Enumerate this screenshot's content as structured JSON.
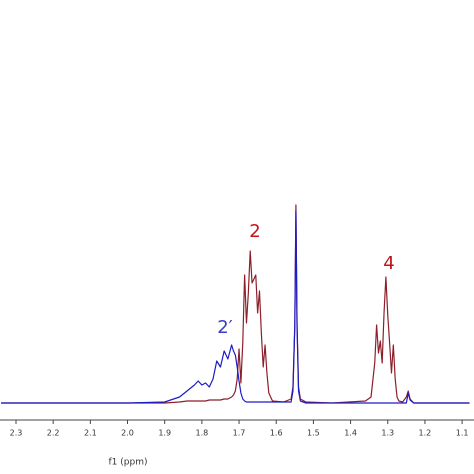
{
  "chart_data": {
    "type": "line",
    "xlabel": "f1 (ppm)",
    "x": [
      2.34,
      2.0,
      1.9,
      1.86,
      1.84,
      1.82,
      1.81,
      1.8,
      1.79,
      1.78,
      1.77,
      1.76,
      1.75,
      1.74,
      1.73,
      1.72,
      1.715,
      1.71,
      1.705,
      1.7,
      1.695,
      1.69,
      1.685,
      1.68,
      1.675,
      1.67,
      1.665,
      1.66,
      1.655,
      1.65,
      1.645,
      1.64,
      1.635,
      1.63,
      1.625,
      1.62,
      1.61,
      1.58,
      1.56,
      1.555,
      1.55,
      1.547,
      1.544,
      1.54,
      1.535,
      1.52,
      1.45,
      1.36,
      1.345,
      1.335,
      1.33,
      1.325,
      1.32,
      1.315,
      1.31,
      1.305,
      1.3,
      1.295,
      1.29,
      1.285,
      1.28,
      1.275,
      1.27,
      1.26,
      1.25,
      1.245,
      1.24,
      1.23,
      1.08
    ],
    "series": [
      {
        "color": "#8b1f2a",
        "values": [
          0,
          0,
          0,
          0.5,
          1,
          1,
          1,
          1,
          1,
          1.5,
          1.5,
          1.5,
          1.5,
          2,
          2,
          3,
          4,
          6,
          12,
          27,
          10,
          30,
          64,
          40,
          55,
          76,
          60,
          62,
          64,
          45,
          56,
          35,
          18,
          29,
          15,
          5,
          1,
          0.5,
          2,
          8,
          40,
          99,
          40,
          8,
          2,
          0.5,
          0,
          1,
          3,
          20,
          39,
          25,
          31,
          20,
          45,
          63,
          44,
          30,
          15,
          29,
          12,
          3,
          1,
          0.5,
          3,
          6,
          2,
          0,
          0
        ]
      },
      {
        "color": "#1c1cc8",
        "values": [
          0,
          0,
          0.5,
          3,
          6,
          9,
          11,
          9,
          10,
          8,
          12,
          21,
          18,
          26,
          22,
          29,
          26,
          24,
          18,
          11,
          5,
          2,
          1,
          0.5,
          0.5,
          0.5,
          0.5,
          0.5,
          0.5,
          0.5,
          0.5,
          0.5,
          0.5,
          0.5,
          0.5,
          0.5,
          0.5,
          0.5,
          0.5,
          6,
          38,
          96,
          38,
          6,
          1,
          0,
          0,
          0,
          0,
          0,
          0,
          0,
          0,
          0,
          0,
          0,
          0,
          0,
          0,
          0,
          0,
          0,
          0,
          0,
          0,
          5,
          1.5,
          0,
          0
        ]
      }
    ],
    "xlim": [
      2.343,
      1.068
    ],
    "ylim": [
      -8.5,
      201.5
    ],
    "xticks": [
      2.3,
      2.2,
      2.1,
      {
        "value": 2,
        "label": "2.0"
      },
      1.9,
      1.8,
      1.7,
      1.6,
      1.5,
      1.4,
      1.3,
      1.2,
      1.1
    ],
    "annotations": [
      {
        "text": "2",
        "color": "#c0141c"
      },
      {
        "text": "4",
        "color": "#c0141c"
      },
      {
        "text": "2′",
        "color": "#3a3acc"
      }
    ]
  }
}
